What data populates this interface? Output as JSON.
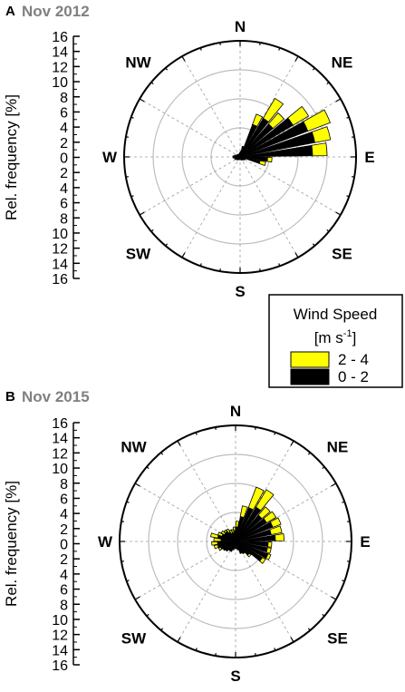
{
  "legend": {
    "title": "Wind Speed",
    "unit_main": "[m s",
    "unit_exp": "-1",
    "unit_close": "]",
    "entries": [
      {
        "label": "2 - 4",
        "color": "#ffff00"
      },
      {
        "label": "0 - 2",
        "color": "#000000"
      }
    ]
  },
  "chart_data": [
    {
      "type": "polar-bar",
      "panel": "A",
      "title": "Nov 2012",
      "ylabel": "Rel. frequency [%]",
      "rlim": [
        0,
        16
      ],
      "tick_labels": [
        "16",
        "14",
        "12",
        "10",
        "8",
        "6",
        "4",
        "2",
        "0",
        "2",
        "4",
        "6",
        "8",
        "10",
        "12",
        "14",
        "16"
      ],
      "directions": [
        "N",
        "NE",
        "E",
        "SE",
        "S",
        "SW",
        "W",
        "NW"
      ],
      "grid": true,
      "series_names": [
        "0 - 2",
        "2 - 4"
      ],
      "sectors": [
        {
          "angle": 5,
          "v02": 0.8,
          "v24": 0.0
        },
        {
          "angle": 15,
          "v02": 1.5,
          "v24": 0.0
        },
        {
          "angle": 25,
          "v02": 4.8,
          "v24": 1.5
        },
        {
          "angle": 35,
          "v02": 6.2,
          "v24": 3.2
        },
        {
          "angle": 45,
          "v02": 6.0,
          "v24": 2.0
        },
        {
          "angle": 55,
          "v02": 8.5,
          "v24": 2.5
        },
        {
          "angle": 65,
          "v02": 10.0,
          "v24": 3.3
        },
        {
          "angle": 75,
          "v02": 10.5,
          "v24": 2.2
        },
        {
          "angle": 85,
          "v02": 10.0,
          "v24": 2.0
        },
        {
          "angle": 95,
          "v02": 3.8,
          "v24": 0.6
        },
        {
          "angle": 105,
          "v02": 2.8,
          "v24": 0.8
        },
        {
          "angle": 115,
          "v02": 0.8,
          "v24": 0.0
        },
        {
          "angle": 125,
          "v02": 0.7,
          "v24": 0.0
        },
        {
          "angle": 135,
          "v02": 0.6,
          "v24": 0.0
        },
        {
          "angle": 145,
          "v02": 0.5,
          "v24": 0.0
        },
        {
          "angle": 155,
          "v02": 0.5,
          "v24": 0.0
        },
        {
          "angle": 165,
          "v02": 0.4,
          "v24": 0.0
        },
        {
          "angle": 175,
          "v02": 0.4,
          "v24": 0.0
        },
        {
          "angle": 185,
          "v02": 0.4,
          "v24": 0.0
        },
        {
          "angle": 195,
          "v02": 0.4,
          "v24": 0.0
        },
        {
          "angle": 205,
          "v02": 0.4,
          "v24": 0.0
        },
        {
          "angle": 215,
          "v02": 0.5,
          "v24": 0.0
        },
        {
          "angle": 225,
          "v02": 0.6,
          "v24": 0.0
        },
        {
          "angle": 235,
          "v02": 0.6,
          "v24": 0.0
        },
        {
          "angle": 245,
          "v02": 0.8,
          "v24": 0.0
        },
        {
          "angle": 255,
          "v02": 0.8,
          "v24": 0.0
        },
        {
          "angle": 265,
          "v02": 1.0,
          "v24": 0.0
        },
        {
          "angle": 275,
          "v02": 1.0,
          "v24": 0.0
        },
        {
          "angle": 285,
          "v02": 0.8,
          "v24": 0.0
        },
        {
          "angle": 295,
          "v02": 0.6,
          "v24": 0.0
        },
        {
          "angle": 305,
          "v02": 0.5,
          "v24": 0.0
        },
        {
          "angle": 315,
          "v02": 0.5,
          "v24": 0.0
        },
        {
          "angle": 325,
          "v02": 0.4,
          "v24": 0.0
        },
        {
          "angle": 335,
          "v02": 0.4,
          "v24": 0.0
        },
        {
          "angle": 345,
          "v02": 0.5,
          "v24": 0.0
        },
        {
          "angle": 355,
          "v02": 0.6,
          "v24": 0.0
        }
      ]
    },
    {
      "type": "polar-bar",
      "panel": "B",
      "title": "Nov 2015",
      "ylabel": "Rel. frequency [%]",
      "rlim": [
        0,
        16
      ],
      "tick_labels": [
        "16",
        "14",
        "12",
        "10",
        "8",
        "6",
        "4",
        "2",
        "0",
        "2",
        "4",
        "6",
        "8",
        "10",
        "12",
        "14",
        "16"
      ],
      "directions": [
        "N",
        "NE",
        "E",
        "SE",
        "S",
        "SW",
        "W",
        "NW"
      ],
      "grid": true,
      "series_names": [
        "0 - 2",
        "2 - 4"
      ],
      "sectors": [
        {
          "angle": 5,
          "v02": 2.0,
          "v24": 0.8
        },
        {
          "angle": 15,
          "v02": 3.5,
          "v24": 1.5
        },
        {
          "angle": 25,
          "v02": 5.0,
          "v24": 3.0
        },
        {
          "angle": 35,
          "v02": 5.5,
          "v24": 2.8
        },
        {
          "angle": 45,
          "v02": 4.8,
          "v24": 1.5
        },
        {
          "angle": 55,
          "v02": 5.0,
          "v24": 1.5
        },
        {
          "angle": 65,
          "v02": 5.5,
          "v24": 1.2
        },
        {
          "angle": 75,
          "v02": 5.0,
          "v24": 1.5
        },
        {
          "angle": 85,
          "v02": 5.5,
          "v24": 1.2
        },
        {
          "angle": 95,
          "v02": 4.5,
          "v24": 0.5
        },
        {
          "angle": 105,
          "v02": 4.5,
          "v24": 0.5
        },
        {
          "angle": 115,
          "v02": 4.8,
          "v24": 0.4
        },
        {
          "angle": 125,
          "v02": 4.3,
          "v24": 0.5
        },
        {
          "angle": 135,
          "v02": 2.5,
          "v24": 0.3
        },
        {
          "angle": 145,
          "v02": 2.0,
          "v24": 0.0
        },
        {
          "angle": 155,
          "v02": 1.8,
          "v24": 0.0
        },
        {
          "angle": 165,
          "v02": 1.2,
          "v24": 0.0
        },
        {
          "angle": 175,
          "v02": 1.0,
          "v24": 0.0
        },
        {
          "angle": 185,
          "v02": 1.0,
          "v24": 0.0
        },
        {
          "angle": 195,
          "v02": 1.2,
          "v24": 0.0
        },
        {
          "angle": 205,
          "v02": 1.5,
          "v24": 0.0
        },
        {
          "angle": 215,
          "v02": 1.5,
          "v24": 0.0
        },
        {
          "angle": 225,
          "v02": 1.8,
          "v24": 0.0
        },
        {
          "angle": 235,
          "v02": 2.0,
          "v24": 0.0
        },
        {
          "angle": 245,
          "v02": 2.2,
          "v24": 0.3
        },
        {
          "angle": 255,
          "v02": 2.5,
          "v24": 0.5
        },
        {
          "angle": 265,
          "v02": 2.5,
          "v24": 0.8
        },
        {
          "angle": 275,
          "v02": 2.0,
          "v24": 1.0
        },
        {
          "angle": 285,
          "v02": 2.5,
          "v24": 1.0
        },
        {
          "angle": 295,
          "v02": 2.0,
          "v24": 0.6
        },
        {
          "angle": 305,
          "v02": 1.8,
          "v24": 0.5
        },
        {
          "angle": 315,
          "v02": 1.8,
          "v24": 0.3
        },
        {
          "angle": 325,
          "v02": 1.5,
          "v24": 0.5
        },
        {
          "angle": 335,
          "v02": 1.2,
          "v24": 0.5
        },
        {
          "angle": 345,
          "v02": 1.2,
          "v24": 0.5
        },
        {
          "angle": 355,
          "v02": 1.5,
          "v24": 0.5
        }
      ]
    }
  ]
}
